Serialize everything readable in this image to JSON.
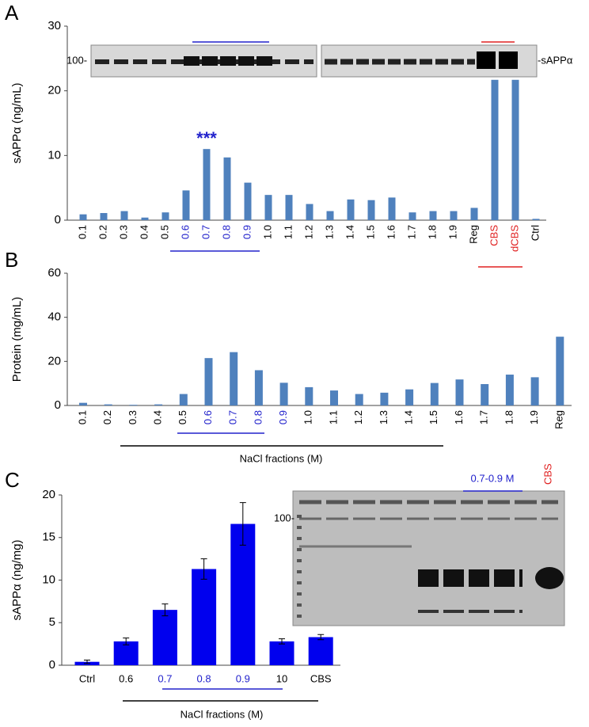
{
  "chart_data": [
    {
      "type": "bar",
      "panel_label": "A",
      "ylabel": "sAPPα (ng/mL)",
      "categories": [
        "0.1",
        "0.2",
        "0.3",
        "0.4",
        "0.5",
        "0.6",
        "0.7",
        "0.8",
        "0.9",
        "1.0",
        "1.1",
        "1.2",
        "1.3",
        "1.4",
        "1.5",
        "1.6",
        "1.7",
        "1.8",
        "1.9",
        "Reg",
        "CBS",
        "dCBS",
        "Ctrl"
      ],
      "category_colors": [
        "#000",
        "#000",
        "#000",
        "#000",
        "#000",
        "#2222cc",
        "#2222cc",
        "#2222cc",
        "#2222cc",
        "#000",
        "#000",
        "#000",
        "#000",
        "#000",
        "#000",
        "#000",
        "#000",
        "#000",
        "#000",
        "#000",
        "#e02020",
        "#e02020",
        "#000"
      ],
      "values": [
        0.9,
        1.1,
        1.4,
        0.4,
        1.2,
        4.6,
        11.0,
        9.7,
        5.8,
        3.9,
        3.9,
        2.5,
        1.4,
        3.2,
        3.1,
        3.5,
        1.2,
        1.4,
        1.4,
        1.9,
        21.7,
        21.7,
        0.2
      ],
      "color": "#4f81bd",
      "ylim": [
        0,
        30
      ],
      "yticks": [
        0,
        10,
        20,
        30
      ],
      "annotations": [
        "***"
      ],
      "blot_labels": [
        "100-",
        "-sAPPα"
      ]
    },
    {
      "type": "bar",
      "panel_label": "B",
      "ylabel": "Protein (mg/mL)",
      "xlabel": "NaCl fractions (M)",
      "categories": [
        "0.1",
        "0.2",
        "0.3",
        "0.4",
        "0.5",
        "0.6",
        "0.7",
        "0.8",
        "0.9",
        "1.0",
        "1.1",
        "1.2",
        "1.3",
        "1.4",
        "1.5",
        "1.6",
        "1.7",
        "1.8",
        "1.9",
        "Reg"
      ],
      "category_colors": [
        "#000",
        "#000",
        "#000",
        "#000",
        "#000",
        "#2222cc",
        "#2222cc",
        "#2222cc",
        "#2222cc",
        "#000",
        "#000",
        "#000",
        "#000",
        "#000",
        "#000",
        "#000",
        "#000",
        "#000",
        "#000",
        "#000"
      ],
      "values": [
        1.2,
        0.5,
        0.3,
        0.5,
        5.2,
        21.5,
        24.2,
        16.0,
        10.3,
        8.3,
        6.8,
        5.2,
        5.8,
        7.3,
        10.2,
        11.8,
        9.7,
        14.0,
        12.8,
        31.2
      ],
      "color": "#4f81bd",
      "ylim": [
        0,
        60
      ],
      "yticks": [
        0,
        20,
        40,
        60
      ]
    },
    {
      "type": "bar",
      "panel_label": "C",
      "ylabel": "sAPPα (ng/mg)",
      "xlabel": "NaCl fractions (M)",
      "categories": [
        "Ctrl",
        "0.6",
        "0.7",
        "0.8",
        "0.9",
        "10",
        "CBS"
      ],
      "category_colors": [
        "#000",
        "#000",
        "#2222cc",
        "#2222cc",
        "#2222cc",
        "#000",
        "#000"
      ],
      "values": [
        0.4,
        2.8,
        6.5,
        11.3,
        16.6,
        2.8,
        3.3
      ],
      "errors": [
        0.2,
        0.4,
        0.7,
        1.2,
        2.5,
        0.3,
        0.3
      ],
      "color": "#0000ee",
      "ylim": [
        0,
        20
      ],
      "yticks": [
        0,
        5,
        10,
        15,
        20
      ],
      "gel_labels": [
        "100-",
        "0.7-0.9 M",
        "CBS"
      ]
    }
  ]
}
